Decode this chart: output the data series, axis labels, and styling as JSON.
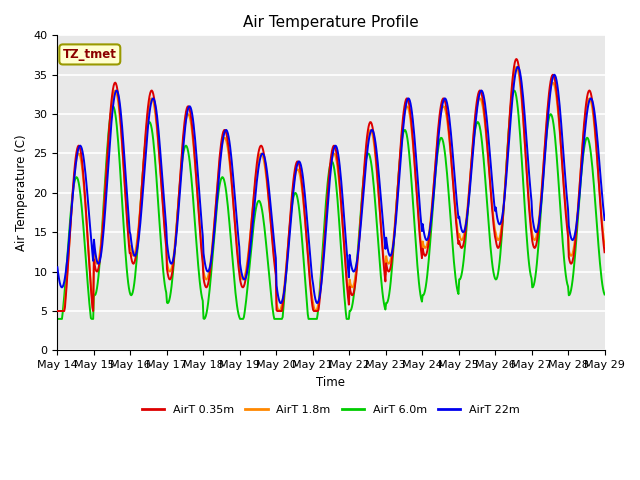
{
  "title": "Air Temperature Profile",
  "xlabel": "Time",
  "ylabel": "Air Temperature (C)",
  "ylim": [
    0,
    40
  ],
  "annotation_text": "TZ_tmet",
  "annotation_color": "#8B0000",
  "annotation_bg": "#FFFFD0",
  "annotation_border": "#999900",
  "series": [
    {
      "label": "AirT 0.35m",
      "color": "#DD0000"
    },
    {
      "label": "AirT 1.8m",
      "color": "#FF8800"
    },
    {
      "label": "AirT 6.0m",
      "color": "#00CC00"
    },
    {
      "label": "AirT 22m",
      "color": "#0000EE"
    }
  ],
  "x_tick_labels": [
    "May 14",
    "May 15",
    "May 16",
    "May 17",
    "May 18",
    "May 19",
    "May 20",
    "May 21",
    "May 22",
    "May 23",
    "May 24",
    "May 25",
    "May 26",
    "May 27",
    "May 28",
    "May 29"
  ],
  "background_color": "#E8E8E8",
  "grid_color": "#FFFFFF",
  "fig_background": "#FFFFFF",
  "n_days": 15,
  "base_means_035": [
    14,
    22,
    22,
    20,
    18,
    17,
    14,
    15,
    18,
    21,
    22,
    23,
    25,
    24,
    22
  ],
  "base_means_18": [
    14,
    22,
    22,
    20,
    18,
    17,
    14,
    15,
    18,
    21,
    22,
    23,
    25,
    24,
    22
  ],
  "base_means_60": [
    12,
    19,
    18,
    16,
    13,
    11,
    10,
    13,
    15,
    17,
    17,
    19,
    21,
    19,
    17
  ],
  "base_means_22m": [
    17,
    22,
    22,
    21,
    19,
    17,
    15,
    16,
    19,
    22,
    23,
    24,
    26,
    25,
    23
  ],
  "amps_035": [
    12,
    12,
    11,
    11,
    10,
    9,
    10,
    11,
    11,
    11,
    10,
    10,
    12,
    11,
    11
  ],
  "amps_18": [
    11,
    11,
    10,
    10,
    9,
    8,
    9,
    10,
    10,
    10,
    9,
    9,
    11,
    10,
    10
  ],
  "amps_60": [
    10,
    12,
    11,
    10,
    9,
    8,
    10,
    11,
    10,
    11,
    10,
    10,
    12,
    11,
    10
  ],
  "amps_22m": [
    9,
    11,
    10,
    10,
    9,
    8,
    9,
    10,
    9,
    10,
    9,
    9,
    10,
    10,
    9
  ]
}
